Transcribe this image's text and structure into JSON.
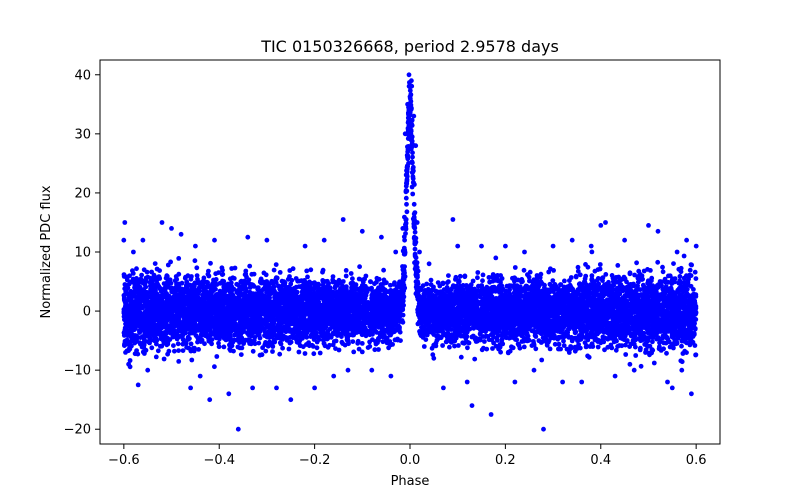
{
  "chart_data": {
    "type": "scatter",
    "title": "TIC 0150326668, period 2.9578 days",
    "xlabel": "Phase",
    "ylabel": "Normalized PDC flux",
    "xlim": [
      -0.65,
      0.65
    ],
    "ylim": [
      -22.5,
      42.5
    ],
    "xticks": [
      -0.6,
      -0.4,
      -0.2,
      0.0,
      0.2,
      0.4,
      0.6
    ],
    "xtick_labels": [
      "−0.6",
      "−0.4",
      "−0.2",
      "0.0",
      "0.2",
      "0.4",
      "0.6"
    ],
    "yticks": [
      -20,
      -10,
      0,
      10,
      20,
      30,
      40
    ],
    "ytick_labels": [
      "−20",
      "−10",
      "0",
      "10",
      "20",
      "30",
      "40"
    ],
    "grid": false,
    "legend": "none",
    "marker_color": "#0000ff",
    "series": [
      {
        "points_summary": "dense cloud of points spanning phase -0.6 to 0.6; baseline scatter roughly -10 to +12 centered near 0; sharp peak at phase 0.0 reaching about 39",
        "points": [
          [
            -0.6,
            12
          ],
          [
            -0.598,
            15
          ],
          [
            -0.59,
            -9
          ],
          [
            -0.58,
            10
          ],
          [
            -0.57,
            -12.5
          ],
          [
            -0.56,
            12
          ],
          [
            -0.55,
            -10
          ],
          [
            -0.52,
            15
          ],
          [
            -0.5,
            14
          ],
          [
            -0.48,
            13
          ],
          [
            -0.46,
            -13
          ],
          [
            -0.45,
            11
          ],
          [
            -0.44,
            -11
          ],
          [
            -0.42,
            -15
          ],
          [
            -0.41,
            12
          ],
          [
            -0.38,
            -14
          ],
          [
            -0.36,
            -20
          ],
          [
            -0.34,
            12.5
          ],
          [
            -0.33,
            -13
          ],
          [
            -0.3,
            12
          ],
          [
            -0.28,
            -13
          ],
          [
            -0.25,
            -15
          ],
          [
            -0.22,
            11
          ],
          [
            -0.2,
            -13
          ],
          [
            -0.18,
            12
          ],
          [
            -0.16,
            -11
          ],
          [
            -0.14,
            15.5
          ],
          [
            -0.13,
            -10
          ],
          [
            -0.1,
            13.5
          ],
          [
            -0.08,
            -10
          ],
          [
            -0.06,
            12.5
          ],
          [
            -0.04,
            -11
          ],
          [
            -0.03,
            10
          ],
          [
            -0.02,
            -5
          ],
          [
            -0.015,
            14
          ],
          [
            -0.01,
            30
          ],
          [
            -0.005,
            35
          ],
          [
            0.0,
            38
          ],
          [
            0.003,
            39
          ],
          [
            0.008,
            33
          ],
          [
            0.012,
            28
          ],
          [
            0.015,
            15
          ],
          [
            0.02,
            10
          ],
          [
            0.03,
            -6
          ],
          [
            0.04,
            8
          ],
          [
            0.05,
            -8
          ],
          [
            0.07,
            -13
          ],
          [
            0.09,
            15.5
          ],
          [
            0.1,
            11
          ],
          [
            0.12,
            -12
          ],
          [
            0.13,
            -16
          ],
          [
            0.15,
            11
          ],
          [
            0.17,
            -17.5
          ],
          [
            0.18,
            9
          ],
          [
            0.2,
            11
          ],
          [
            0.22,
            -12
          ],
          [
            0.24,
            10
          ],
          [
            0.26,
            -10
          ],
          [
            0.28,
            -20
          ],
          [
            0.3,
            11
          ],
          [
            0.32,
            -12
          ],
          [
            0.34,
            12
          ],
          [
            0.36,
            -12
          ],
          [
            0.38,
            11
          ],
          [
            0.4,
            14.5
          ],
          [
            0.41,
            15
          ],
          [
            0.43,
            -11
          ],
          [
            0.45,
            12
          ],
          [
            0.47,
            -10
          ],
          [
            0.5,
            14.5
          ],
          [
            0.52,
            13.5
          ],
          [
            0.54,
            -12
          ],
          [
            0.55,
            -13
          ],
          [
            0.56,
            10
          ],
          [
            0.57,
            -10
          ],
          [
            0.58,
            12
          ],
          [
            0.59,
            -14
          ],
          [
            0.6,
            11
          ]
        ]
      }
    ]
  }
}
